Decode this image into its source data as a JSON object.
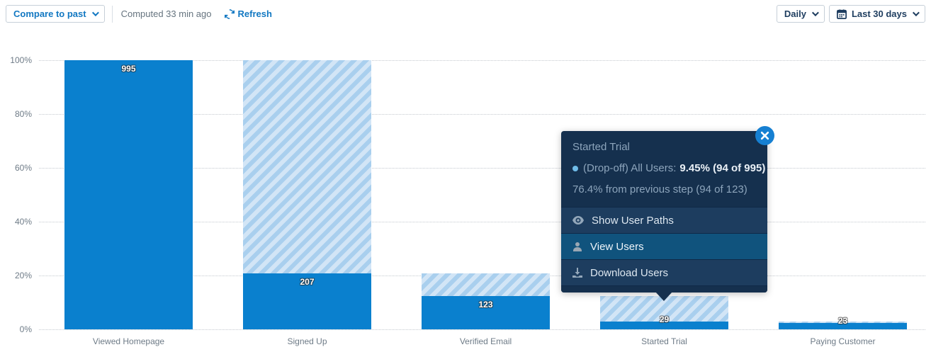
{
  "header": {
    "compare_button": "Compare to past",
    "computed_text": "Computed 33 min ago",
    "refresh_label": "Refresh",
    "daily_button": "Daily",
    "date_range_button": "Last 30 days"
  },
  "chart_data": {
    "type": "bar",
    "subtype": "funnel-conversion",
    "title": "",
    "categories": [
      "Viewed Homepage",
      "Signed Up",
      "Verified Email",
      "Started Trial",
      "Paying Customer"
    ],
    "values": [
      995,
      207,
      123,
      29,
      23
    ],
    "total": 995,
    "percent_of_total": [
      100,
      20.8,
      12.4,
      2.9,
      2.3
    ],
    "yticks": [
      "0%",
      "20%",
      "40%",
      "60%",
      "80%",
      "100%"
    ],
    "ylim": [
      0,
      100
    ],
    "grid": "dotted-horizontal",
    "legend": "none",
    "solid_color": "#0a80ce",
    "stripe_color_dark": "#a9cfee",
    "stripe_color_light": "#d2e5f6",
    "dropoff_note": "hatched segment above each bar = drop-off from previous step"
  },
  "tooltip": {
    "title": "Started Trial",
    "dropoff_label": "(Drop-off) All Users:",
    "dropoff_value": "9.45% (94 of 995)",
    "previous_step": "76.4% from previous step (94 of 123)",
    "menu": [
      {
        "label": "Show User Paths",
        "icon": "eye-icon"
      },
      {
        "label": "View Users",
        "icon": "user-icon",
        "highlighted": true
      },
      {
        "label": "Download Users",
        "icon": "download-icon"
      }
    ]
  }
}
